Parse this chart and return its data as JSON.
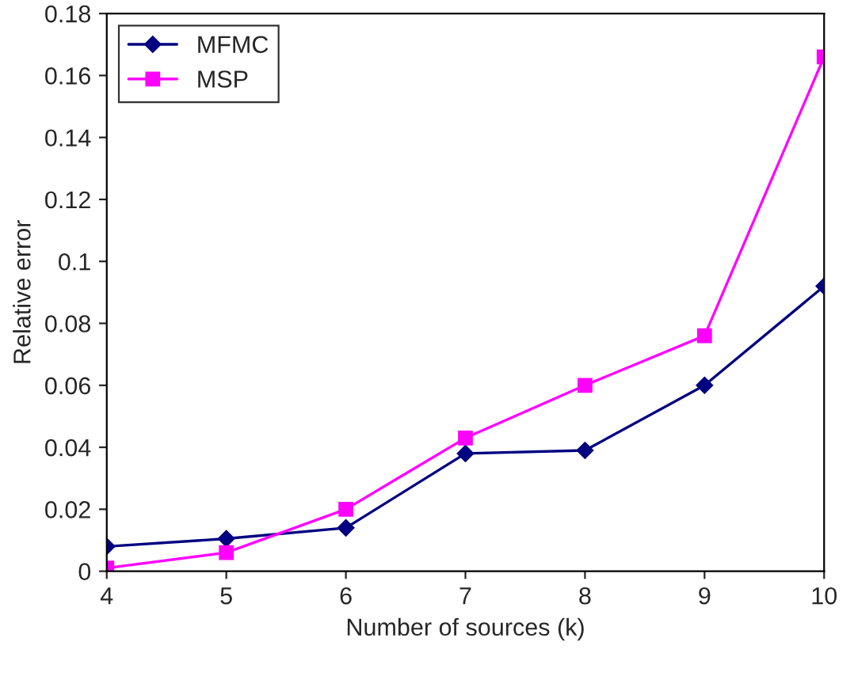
{
  "chart_data": {
    "type": "line",
    "xlabel": "Number of sources (k)",
    "ylabel": "Relative error",
    "x": [
      4,
      5,
      6,
      7,
      8,
      9,
      10
    ],
    "series": [
      {
        "name": "MFMC",
        "color": "#000080",
        "marker": "diamond",
        "values": [
          0.008,
          0.0105,
          0.014,
          0.038,
          0.039,
          0.06,
          0.092
        ]
      },
      {
        "name": "MSP",
        "color": "#ff00ff",
        "marker": "square",
        "values": [
          0.001,
          0.006,
          0.02,
          0.043,
          0.06,
          0.076,
          0.166
        ]
      }
    ],
    "xlim": [
      4,
      10
    ],
    "xticks": [
      4,
      5,
      6,
      7,
      8,
      9,
      10
    ],
    "ylim": [
      0,
      0.18
    ],
    "yticks": [
      0,
      0.02,
      0.04,
      0.06,
      0.08,
      0.1,
      0.12,
      0.14,
      0.16,
      0.18
    ],
    "grid": false,
    "legend": "top left",
    "line_style": "solid"
  }
}
